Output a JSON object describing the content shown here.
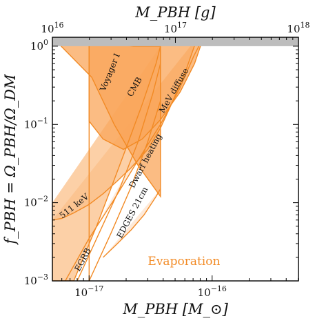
{
  "chart_data": {
    "type": "area",
    "xlabel": "M_PBH [M_⊙]",
    "x2label": "M_PBH [g]",
    "ylabel": "f_PBH = Ω_PBH/Ω_DM",
    "x_unit": "M_sun",
    "x2_unit": "g",
    "xlim": [
      5.03e-18,
      5.03e-16
    ],
    "ylim": [
      0.001,
      1.3
    ],
    "x_scale": "log",
    "y_scale": "log",
    "x_ticks": [
      {
        "value": 1e-17,
        "label": "10^-17"
      },
      {
        "value": 1e-16,
        "label": "10^-16"
      }
    ],
    "x2_ticks": [
      {
        "value": 1e+16,
        "label": "10^16"
      },
      {
        "value": 1e+17,
        "label": "10^17"
      },
      {
        "value": 1e+18,
        "label": "10^18"
      }
    ],
    "y_ticks": [
      {
        "value": 0.001,
        "label": "10^-3"
      },
      {
        "value": 0.01,
        "label": "10^-2"
      },
      {
        "value": 0.1,
        "label": "10^-1"
      },
      {
        "value": 1,
        "label": "10^0"
      }
    ],
    "colors": {
      "line": "#f28a24",
      "band": "#bdbdbd",
      "text_evap": "#f28a24",
      "fill_light": "#fde3cc",
      "fill_mid": "#fbc08a",
      "fill_dark": "#f9a65a"
    },
    "overclosure_band": {
      "y_min": 1,
      "y_max": 1.3
    },
    "constraints": [
      {
        "label": "Voyager I",
        "points": [
          [
            5.03e-18,
            1.3
          ],
          [
            2.3e-17,
            1.0
          ],
          [
            3.8e-17,
            1.0
          ],
          [
            3.8e-17,
            0.012
          ],
          [
            2.5e-17,
            0.03
          ],
          [
            1.6e-17,
            0.1
          ],
          [
            1.05e-17,
            0.4
          ],
          [
            5.03e-18,
            1.3
          ]
        ],
        "fill_level": "dark"
      },
      {
        "label": "CMB",
        "points": [
          [
            1e-17,
            1.0
          ],
          [
            1e-17,
            0.11
          ],
          [
            1.3e-17,
            0.065
          ],
          [
            1.9e-17,
            0.048
          ],
          [
            2.7e-17,
            0.065
          ],
          [
            3.8e-17,
            0.115
          ],
          [
            5.5e-17,
            0.26
          ],
          [
            7.2e-17,
            0.6
          ],
          [
            8.5e-17,
            1.3
          ]
        ],
        "fill_level": "dark"
      },
      {
        "label": "MeV diffuse",
        "points": [
          [
            6.4e-18,
            0.001
          ],
          [
            1e-17,
            0.0035
          ],
          [
            1.6e-17,
            0.011
          ],
          [
            2.5e-17,
            0.035
          ],
          [
            3.8e-17,
            0.1
          ],
          [
            5.4e-17,
            0.28
          ],
          [
            7.1e-17,
            0.75
          ],
          [
            8.5e-17,
            1.3
          ]
        ],
        "fill_level": "light"
      },
      {
        "label": "Dwarf heating",
        "points": [
          [
            3.8e-17,
            0.033
          ],
          [
            3.8e-17,
            1.0
          ]
        ],
        "fill_level": "light"
      },
      {
        "label": "511 keV",
        "points": [
          [
            5.03e-18,
            0.006
          ],
          [
            6e-18,
            0.0063
          ],
          [
            7.5e-18,
            0.0074
          ],
          [
            1e-17,
            0.0095
          ],
          [
            1.3e-17,
            0.013
          ],
          [
            1.7e-17,
            0.019
          ],
          [
            2.2e-17,
            0.028
          ],
          [
            3e-17,
            0.048
          ],
          [
            3.8e-17,
            0.09
          ],
          [
            4.5e-17,
            0.16
          ],
          [
            6e-17,
            0.45
          ],
          [
            7.6e-17,
            1.3
          ]
        ],
        "fill_level": "mid"
      },
      {
        "label": "EDGES 21cm",
        "points": [
          [
            1.3e-17,
            0.002
          ],
          [
            1.7e-17,
            0.003
          ],
          [
            2.2e-17,
            0.0045
          ],
          [
            2.8e-17,
            0.007
          ],
          [
            3.5e-17,
            0.012
          ],
          [
            3.8e-17,
            0.015
          ]
        ],
        "fill_level": "light"
      },
      {
        "label": "EGRB",
        "points": [
          [
            5.03e-18,
            0.01
          ],
          [
            5.03e-18,
            0.001
          ],
          [
            7.5e-18,
            0.001
          ],
          [
            9e-18,
            0.002
          ],
          [
            1.15e-17,
            0.005
          ],
          [
            1.5e-17,
            0.015
          ],
          [
            2e-17,
            0.05
          ],
          [
            2.7e-17,
            0.18
          ],
          [
            3.5e-17,
            0.6
          ],
          [
            3.8e-17,
            1.0
          ]
        ],
        "fill_level": "mid"
      }
    ],
    "extra_lines": [
      [
        [
          8e-18,
          0.001
        ],
        [
          1.2e-17,
          0.004
        ],
        [
          1.8e-17,
          0.016
        ],
        [
          2.5e-17,
          0.06
        ],
        [
          3.3e-17,
          0.25
        ],
        [
          3.8e-17,
          0.6
        ]
      ],
      [
        [
          1e-17,
          0.001
        ],
        [
          1.5e-17,
          0.004
        ],
        [
          2.2e-17,
          0.016
        ],
        [
          3e-17,
          0.06
        ],
        [
          3.8e-17,
          0.2
        ]
      ],
      [
        [
          1e-17,
          1.0
        ],
        [
          1e-17,
          0.001
        ]
      ]
    ],
    "region_labels": [
      {
        "text": "Voyager I",
        "x": 1.55e-17,
        "y": 0.45,
        "angle": -68
      },
      {
        "text": "CMB",
        "x": 2.45e-17,
        "y": 0.29,
        "angle": -60
      },
      {
        "text": "MeV diffuse",
        "x": 5.1e-17,
        "y": 0.26,
        "angle": -60
      },
      {
        "text": "Dwarf heating",
        "x": 3e-17,
        "y": 0.033,
        "angle": -62
      },
      {
        "text": "511 keV",
        "x": 7.8e-18,
        "y": 0.0085,
        "angle": -38
      },
      {
        "text": "EDGES 21cm",
        "x": 2.35e-17,
        "y": 0.0072,
        "angle": -62
      },
      {
        "text": "EGRB",
        "x": 9.3e-18,
        "y": 0.0018,
        "angle": -62
      }
    ],
    "annotation": {
      "text": "Evaporation",
      "x": 3e-17,
      "y": 0.0016
    }
  }
}
